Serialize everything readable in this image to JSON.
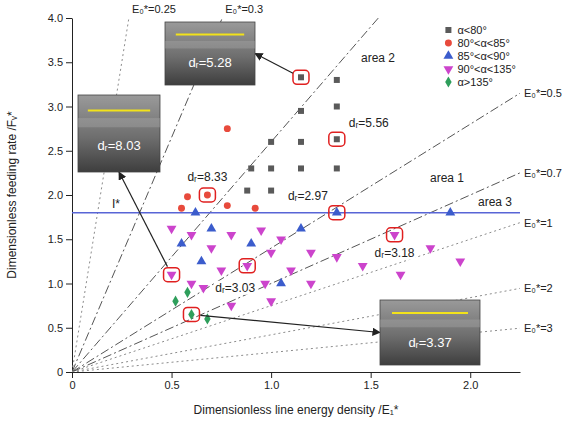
{
  "chart_data": {
    "type": "scatter",
    "x_label": "Dimensionless line energy density /E₁*",
    "y_label": "Dimensionless feeding rate /Fᵥ*",
    "xlim": [
      0,
      2.25
    ],
    "ylim": [
      0,
      4
    ],
    "xticks": [
      0,
      0.5,
      {
        "value": 1,
        "label": "1.0"
      },
      1.5,
      {
        "value": 2,
        "label": "2.0"
      }
    ],
    "yticks": [
      0,
      0.5,
      {
        "value": 1,
        "label": "1.0"
      },
      1.5,
      {
        "value": 2,
        "label": "2.0"
      },
      2.5,
      {
        "value": 3,
        "label": "3.0"
      },
      3.5,
      {
        "value": 4,
        "label": "4.0"
      }
    ],
    "legend": "top-right",
    "series": [
      {
        "name": "α<80°",
        "color": "#5a5a5a",
        "marker": "square",
        "x": [
          1.15,
          1.33,
          1.33,
          1.33,
          1.15,
          1.15,
          1.33,
          1.15,
          1.0,
          1.0,
          1.0,
          0.9,
          0.88
        ],
        "values": [
          3.33,
          3.3,
          3.0,
          2.63,
          2.95,
          2.6,
          2.3,
          2.3,
          2.6,
          2.3,
          2.05,
          2.3,
          2.05
        ]
      },
      {
        "name": "80°<α<85°",
        "color": "#e84a3c",
        "marker": "circle",
        "x": [
          0.78,
          0.68,
          0.58,
          0.78,
          0.92,
          0.55
        ],
        "values": [
          2.75,
          2.0,
          1.98,
          1.88,
          1.85,
          1.85
        ]
      },
      {
        "name": "85°<α<90°",
        "color": "#3b5ccc",
        "marker": "triangle-up",
        "x": [
          1.33,
          1.9,
          0.62,
          0.7,
          0.55,
          0.9,
          1.15,
          0.65,
          1.05
        ],
        "values": [
          1.8,
          1.8,
          1.8,
          1.62,
          1.45,
          1.45,
          1.62,
          1.25,
          1.0
        ]
      },
      {
        "name": "90°<α<135°",
        "color": "#cc44cc",
        "marker": "triangle-down",
        "x": [
          0.5,
          0.6,
          0.8,
          0.95,
          1.05,
          0.7,
          1.0,
          1.2,
          0.88,
          0.75,
          1.1,
          0.6,
          0.66,
          0.97,
          1.2,
          1.33,
          1.46,
          1.62,
          1.8,
          1.65,
          1.95,
          0.8,
          1.0,
          0.5
        ],
        "values": [
          1.62,
          1.55,
          1.55,
          1.6,
          1.5,
          1.4,
          1.35,
          1.35,
          1.2,
          1.15,
          1.15,
          1.0,
          0.95,
          1.0,
          1.0,
          1.3,
          1.2,
          1.55,
          1.4,
          1.1,
          1.25,
          0.75,
          0.8,
          1.1
        ]
      },
      {
        "name": "α>135°",
        "color": "#2e9e5b",
        "marker": "diamond",
        "x": [
          0.6,
          0.52,
          0.68,
          0.58
        ],
        "values": [
          0.65,
          0.8,
          0.6,
          0.9
        ]
      }
    ],
    "reference_lines": [
      {
        "label": "E₀*=0.25",
        "slope": 14,
        "line_style": "dotted"
      },
      {
        "label": "E₀*=0.3",
        "slope": 5.3,
        "line_style": "dashdot"
      },
      {
        "slope": 2.6,
        "line_style": "dashdot"
      },
      {
        "label": "E₀*=0.5",
        "slope": 1.4,
        "line_style": "dashdot"
      },
      {
        "label": "E₀*=0.7",
        "slope": 1.0,
        "line_style": "dashdot"
      },
      {
        "label": "E₀*=1",
        "slope": 0.75,
        "line_style": "dotted"
      },
      {
        "label": "E₀*=2",
        "slope": 0.42,
        "line_style": "dotted"
      },
      {
        "label": "E₀*=3",
        "slope": 0.22,
        "line_style": "dotted"
      }
    ],
    "horizontal_line": {
      "label": "I*",
      "value": 1.8,
      "color": "#5865d6"
    },
    "region_labels": [
      "area 1",
      "area 2",
      "area 3"
    ],
    "annotations": [
      {
        "text": "dᵣ=5.56",
        "x": 1.33,
        "y": 2.63
      },
      {
        "text": "dᵣ=8.33",
        "x": 0.68,
        "y": 2.0
      },
      {
        "text": "dᵣ=2.97",
        "x": 1.33,
        "y": 1.8
      },
      {
        "text": "dᵣ=3.18",
        "x": 1.62,
        "y": 1.55
      },
      {
        "text": "dᵣ=3.03",
        "x": 0.88,
        "y": 1.2
      }
    ],
    "insets": [
      {
        "label": "dᵣ=8.03",
        "x": 0.5,
        "y": 1.1
      },
      {
        "label": "dᵣ=5.28",
        "x": 1.15,
        "y": 3.33
      },
      {
        "label": "dᵣ=3.37",
        "x": 0.6,
        "y": 0.65
      }
    ]
  }
}
